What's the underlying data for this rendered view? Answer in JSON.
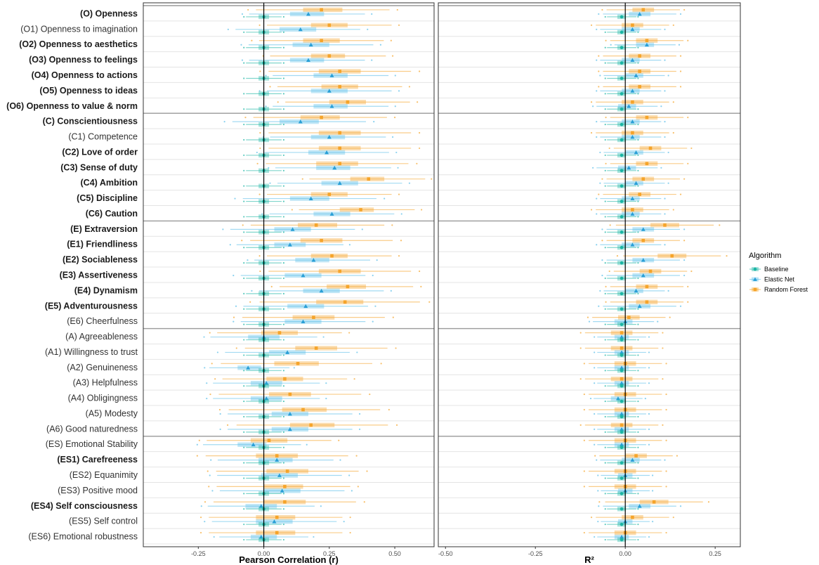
{
  "chart_data": {
    "type": "boxplot",
    "legend": {
      "title": "Algorithm",
      "position": "right",
      "items": [
        {
          "name": "Baseline",
          "color": "#1ab5a4",
          "shape": "circle"
        },
        {
          "name": "Elastic Net",
          "color": "#58bde8",
          "shape": "triangle"
        },
        {
          "name": "Random Forest",
          "color": "#f5a42a",
          "shape": "square"
        }
      ]
    },
    "categories": [
      {
        "label": "(O) Openness",
        "bold": true
      },
      {
        "label": "(O1) Openness to imagination",
        "bold": false
      },
      {
        "label": "(O2) Openness to aesthetics",
        "bold": true
      },
      {
        "label": "(O3) Openness to feelings",
        "bold": true
      },
      {
        "label": "(O4) Openness to actions",
        "bold": true
      },
      {
        "label": "(O5) Openness to ideas",
        "bold": true
      },
      {
        "label": "(O6) Openness to value & norm",
        "bold": true
      },
      {
        "label": "(C) Conscientiousness",
        "bold": true
      },
      {
        "label": "(C1) Competence",
        "bold": false
      },
      {
        "label": "(C2) Love of order",
        "bold": true
      },
      {
        "label": "(C3) Sense of duty",
        "bold": true
      },
      {
        "label": "(C4) Ambition",
        "bold": true
      },
      {
        "label": "(C5) Discipline",
        "bold": true
      },
      {
        "label": "(C6) Caution",
        "bold": true
      },
      {
        "label": "(E) Extraversion",
        "bold": true
      },
      {
        "label": "(E1) Friendliness",
        "bold": true
      },
      {
        "label": "(E2) Sociableness",
        "bold": true
      },
      {
        "label": "(E3) Assertiveness",
        "bold": true
      },
      {
        "label": "(E4) Dynamism",
        "bold": true
      },
      {
        "label": "(E5) Adventurousness",
        "bold": true
      },
      {
        "label": "(E6) Cheerfulness",
        "bold": false
      },
      {
        "label": "(A) Agreeableness",
        "bold": false
      },
      {
        "label": "(A1) Willingness to trust",
        "bold": false
      },
      {
        "label": "(A2) Genuineness",
        "bold": false
      },
      {
        "label": "(A3) Helpfulness",
        "bold": false
      },
      {
        "label": "(A4) Obligingness",
        "bold": false
      },
      {
        "label": "(A5) Modesty",
        "bold": false
      },
      {
        "label": "(A6) Good naturedness",
        "bold": false
      },
      {
        "label": "(ES) Emotional Stability",
        "bold": false
      },
      {
        "label": "(ES1) Carefreeness",
        "bold": true
      },
      {
        "label": "(ES2) Equanimity",
        "bold": false
      },
      {
        "label": "(ES3) Positive mood",
        "bold": false
      },
      {
        "label": "(ES4) Self consciousness",
        "bold": true
      },
      {
        "label": "(ES5) Self control",
        "bold": false
      },
      {
        "label": "(ES6) Emotional robustness",
        "bold": false
      }
    ],
    "group_separators_after_index": [
      6,
      13,
      20,
      27
    ],
    "panels": [
      {
        "xlabel": "Pearson Correlation (r)",
        "xlim": [
          -0.46,
          0.65
        ],
        "ticks": [
          -0.25,
          0,
          0.25,
          0.5
        ],
        "tick_labels": [
          "-0.25",
          "0.00",
          "0.25",
          "0.50"
        ],
        "reference_line": 0,
        "series": [
          {
            "name": "Random Forest",
            "mean": [
              0.22,
              0.25,
              0.22,
              0.25,
              0.29,
              0.29,
              0.32,
              0.22,
              0.29,
              0.29,
              0.29,
              0.4,
              0.25,
              0.37,
              0.2,
              0.22,
              0.26,
              0.29,
              0.32,
              0.31,
              0.19,
              0.06,
              0.2,
              0.13,
              0.08,
              0.1,
              0.15,
              0.18,
              0.02,
              0.05,
              0.09,
              0.08,
              0.08,
              0.05,
              0.05
            ],
            "q1": [
              0.15,
              0.18,
              0.15,
              0.18,
              0.21,
              0.22,
              0.25,
              0.14,
              0.21,
              0.21,
              0.2,
              0.33,
              0.18,
              0.29,
              0.13,
              0.14,
              0.18,
              0.21,
              0.24,
              0.2,
              0.11,
              -0.01,
              0.12,
              0.04,
              0.01,
              0.02,
              0.07,
              0.1,
              -0.05,
              -0.03,
              0.01,
              0.0,
              0.0,
              -0.03,
              -0.03
            ],
            "q3": [
              0.3,
              0.32,
              0.29,
              0.31,
              0.37,
              0.36,
              0.39,
              0.29,
              0.37,
              0.37,
              0.36,
              0.46,
              0.32,
              0.42,
              0.28,
              0.3,
              0.32,
              0.37,
              0.39,
              0.38,
              0.27,
              0.13,
              0.28,
              0.21,
              0.15,
              0.18,
              0.24,
              0.27,
              0.09,
              0.13,
              0.17,
              0.15,
              0.16,
              0.12,
              0.12
            ]
          },
          {
            "name": "Elastic Net",
            "mean": [
              0.17,
              0.14,
              0.18,
              0.17,
              0.26,
              0.25,
              0.26,
              0.14,
              0.25,
              0.24,
              0.27,
              0.29,
              0.18,
              0.26,
              0.11,
              0.1,
              0.19,
              0.15,
              0.22,
              0.16,
              0.15,
              0.0,
              0.09,
              -0.06,
              0.01,
              0.01,
              0.1,
              0.1,
              -0.04,
              0.05,
              0.06,
              0.07,
              -0.01,
              0.04,
              -0.01
            ],
            "q1": [
              0.1,
              0.06,
              0.11,
              0.1,
              0.19,
              0.18,
              0.19,
              0.06,
              0.18,
              0.17,
              0.2,
              0.22,
              0.1,
              0.19,
              0.04,
              0.04,
              0.12,
              0.08,
              0.15,
              0.09,
              0.08,
              -0.06,
              0.02,
              -0.1,
              -0.05,
              -0.05,
              0.03,
              0.03,
              -0.1,
              -0.02,
              -0.01,
              0.0,
              -0.07,
              -0.03,
              -0.05
            ],
            "q3": [
              0.23,
              0.2,
              0.25,
              0.23,
              0.32,
              0.32,
              0.32,
              0.21,
              0.31,
              0.31,
              0.33,
              0.36,
              0.25,
              0.33,
              0.18,
              0.16,
              0.25,
              0.22,
              0.29,
              0.23,
              0.22,
              0.06,
              0.16,
              -0.01,
              0.07,
              0.07,
              0.17,
              0.17,
              0.01,
              0.11,
              0.13,
              0.14,
              0.05,
              0.11,
              0.05
            ]
          },
          {
            "name": "Baseline",
            "mean": [
              0,
              0,
              0,
              0,
              0,
              0,
              0,
              0,
              0,
              0,
              0,
              0,
              0,
              0,
              0,
              0,
              0,
              0,
              0,
              0,
              0,
              0,
              0,
              0,
              0,
              0,
              0,
              0,
              0,
              0,
              0,
              0,
              0,
              0,
              0
            ]
          }
        ]
      },
      {
        "xlabel": "R²",
        "xlim": [
          -0.52,
          0.32
        ],
        "ticks": [
          -0.5,
          -0.25,
          0,
          0.25
        ],
        "tick_labels": [
          "-0.50",
          "-0.25",
          "0.00",
          "0.25"
        ],
        "reference_line": 0,
        "series": [
          {
            "name": "Random Forest",
            "mean": [
              0.05,
              0.02,
              0.06,
              0.04,
              0.04,
              0.04,
              0.02,
              0.06,
              0.02,
              0.07,
              0.06,
              0.05,
              0.04,
              0.02,
              0.11,
              0.05,
              0.13,
              0.07,
              0.06,
              0.06,
              0.01,
              -0.01,
              -0.01,
              0.0,
              -0.01,
              0.0,
              0.0,
              -0.01,
              0.0,
              0.03,
              0.0,
              0.0,
              0.08,
              0.02,
              0.0
            ],
            "q1": [
              0.02,
              -0.01,
              0.03,
              0.01,
              0.01,
              0.01,
              -0.01,
              0.03,
              -0.01,
              0.04,
              0.03,
              0.02,
              0.01,
              -0.01,
              0.07,
              0.02,
              0.09,
              0.04,
              0.03,
              0.03,
              -0.02,
              -0.04,
              -0.04,
              -0.03,
              -0.04,
              -0.03,
              -0.03,
              -0.04,
              -0.03,
              0.0,
              -0.03,
              -0.03,
              0.04,
              -0.01,
              -0.03
            ],
            "q3": [
              0.08,
              0.05,
              0.09,
              0.07,
              0.07,
              0.07,
              0.05,
              0.09,
              0.05,
              0.1,
              0.09,
              0.08,
              0.07,
              0.05,
              0.15,
              0.08,
              0.17,
              0.1,
              0.09,
              0.09,
              0.04,
              0.02,
              0.02,
              0.03,
              0.02,
              0.03,
              0.03,
              0.02,
              0.03,
              0.06,
              0.03,
              0.03,
              0.12,
              0.05,
              0.03
            ]
          },
          {
            "name": "Elastic Net",
            "mean": [
              0.04,
              0.02,
              0.06,
              0.02,
              0.03,
              0.02,
              0.01,
              0.02,
              0.02,
              0.03,
              0.01,
              0.03,
              0.02,
              0.02,
              0.05,
              0.02,
              0.05,
              0.05,
              0.03,
              0.04,
              0.0,
              -0.01,
              -0.01,
              -0.01,
              -0.01,
              -0.02,
              -0.01,
              -0.01,
              -0.01,
              0.02,
              0.0,
              0.0,
              0.04,
              0.0,
              -0.01
            ],
            "q1": [
              0.01,
              -0.01,
              0.03,
              -0.01,
              0.0,
              -0.01,
              -0.02,
              -0.01,
              -0.01,
              0.0,
              -0.02,
              0.0,
              -0.01,
              -0.01,
              0.02,
              -0.01,
              0.02,
              0.02,
              0.0,
              0.01,
              -0.03,
              -0.03,
              -0.03,
              -0.03,
              -0.03,
              -0.04,
              -0.03,
              -0.03,
              -0.03,
              -0.01,
              -0.02,
              -0.02,
              0.01,
              -0.02,
              -0.03
            ],
            "q3": [
              0.07,
              0.04,
              0.08,
              0.04,
              0.05,
              0.04,
              0.03,
              0.04,
              0.04,
              0.05,
              0.03,
              0.05,
              0.04,
              0.04,
              0.08,
              0.04,
              0.08,
              0.08,
              0.05,
              0.07,
              0.02,
              0.01,
              0.01,
              0.01,
              0.01,
              0.0,
              0.01,
              0.01,
              0.01,
              0.04,
              0.02,
              0.02,
              0.07,
              0.02,
              0.01
            ]
          },
          {
            "name": "Baseline",
            "mean": [
              -0.01,
              -0.01,
              -0.01,
              -0.01,
              -0.01,
              -0.01,
              -0.01,
              -0.01,
              -0.01,
              -0.01,
              -0.01,
              -0.01,
              -0.01,
              -0.01,
              -0.01,
              -0.01,
              -0.01,
              -0.01,
              -0.01,
              -0.01,
              -0.01,
              -0.01,
              -0.01,
              -0.01,
              -0.01,
              -0.01,
              -0.01,
              -0.01,
              -0.01,
              -0.01,
              -0.01,
              -0.01,
              -0.01,
              -0.01,
              -0.01
            ]
          }
        ]
      }
    ]
  }
}
